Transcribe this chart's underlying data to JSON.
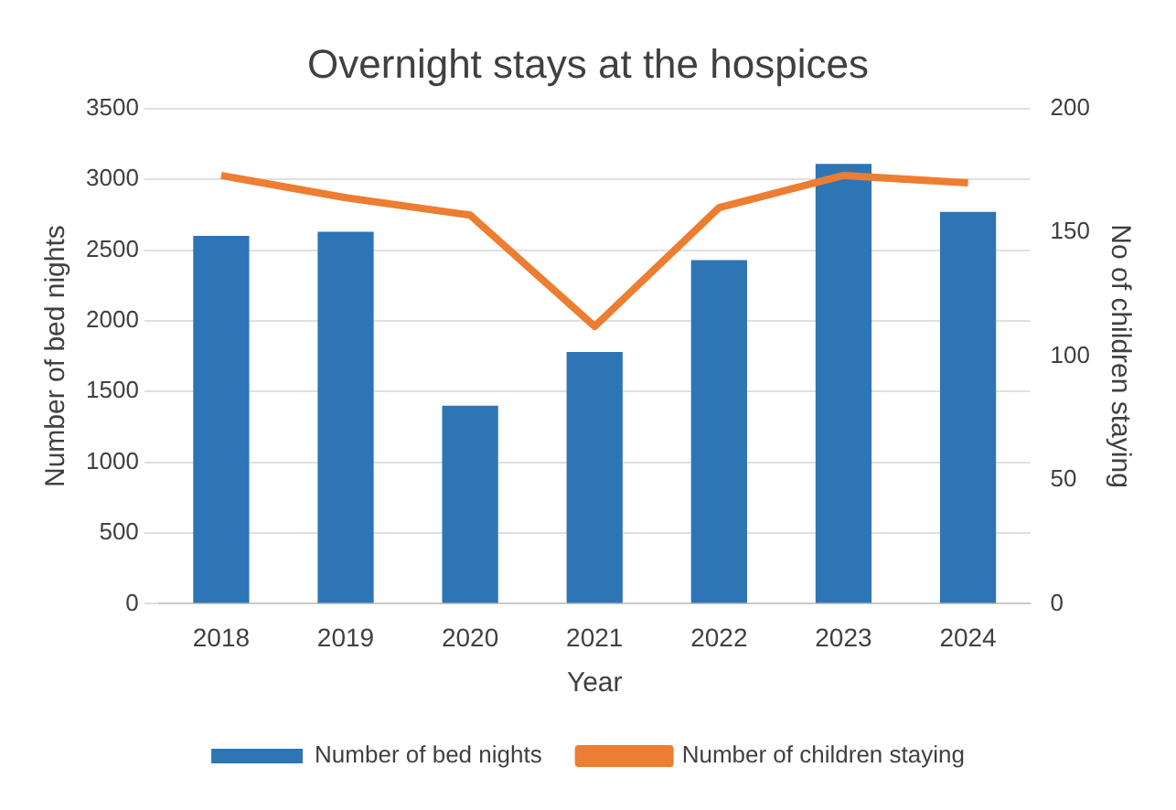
{
  "chart_data": {
    "type": "bar",
    "title": "Overnight stays at the hospices",
    "xlabel": "Year",
    "ylabel": "Number of bed nights",
    "y2label": "No of children staying",
    "categories": [
      "2018",
      "2019",
      "2020",
      "2021",
      "2022",
      "2023",
      "2024"
    ],
    "series": [
      {
        "name": "Number of bed nights",
        "color": "#2e75b6",
        "values": [
          2600,
          2630,
          1400,
          1780,
          2430,
          3110,
          2770
        ]
      },
      {
        "name": "Number of children staying",
        "type": "line",
        "axis": "y2",
        "color": "#ed7d31",
        "values": [
          173,
          164,
          157,
          112,
          160,
          173,
          170
        ]
      }
    ],
    "ylim": [
      0,
      3500
    ],
    "yticks": [
      0,
      500,
      1000,
      1500,
      2000,
      2500,
      3000,
      3500
    ],
    "y2lim": [
      0,
      200
    ],
    "y2ticks": [
      0,
      50,
      100,
      150,
      200
    ],
    "grid": "y",
    "legend": "bottom"
  }
}
